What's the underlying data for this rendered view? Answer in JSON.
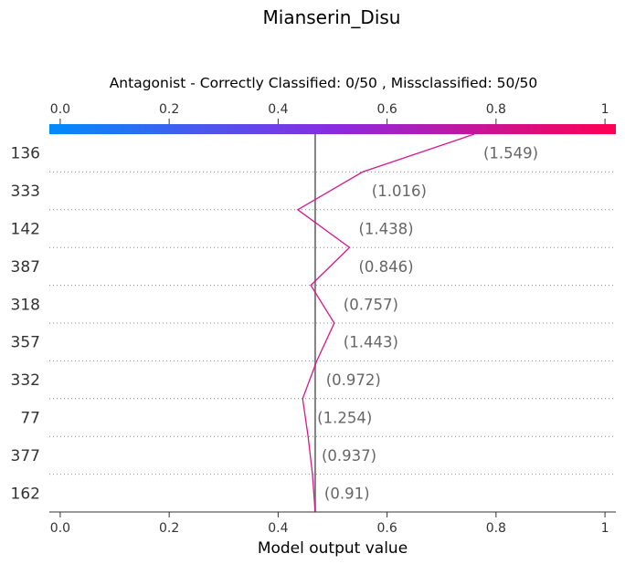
{
  "chart_data": {
    "type": "line",
    "title": "Mianserin_Disu",
    "subtitle": "Antagonist - Correctly Classified: 0/50 , Missclassified: 50/50",
    "xlabel": "Model output value",
    "xlim": [
      -0.02,
      1.02
    ],
    "xticks": [
      "0.0",
      "0.2",
      "0.4",
      "0.6",
      "0.8",
      1.0
    ],
    "base_value": 0.468,
    "top_value": 0.76,
    "colorbar": {
      "from": "#008bfb",
      "mid": "#8a2be2",
      "to": "#ff0052"
    },
    "line_color": "#d6178c",
    "features": [
      "136",
      "333",
      "142",
      "387",
      "318",
      "357",
      "332",
      "77",
      "377",
      "162"
    ],
    "feature_values": [
      "(1.549)",
      "(1.016)",
      "(1.438)",
      "(0.846)",
      "(0.757)",
      "(1.443)",
      "(0.972)",
      "(1.254)",
      "(0.937)",
      "(0.91)"
    ],
    "cumulative_output": [
      0.555,
      0.436,
      0.531,
      0.46,
      0.503,
      0.471,
      0.445,
      0.455,
      0.463,
      0.468
    ]
  }
}
